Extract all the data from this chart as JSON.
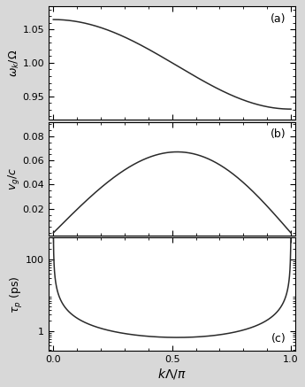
{
  "kappa": 0.067,
  "num_points": 5000,
  "panel_a": {
    "ylabel": "$\\omega_k/\\Omega$",
    "yticks": [
      0.95,
      1.0,
      1.05
    ],
    "ylim": [
      0.915,
      1.085
    ],
    "label": "(a)"
  },
  "panel_b": {
    "ylabel": "$v_g/c$",
    "yticks": [
      0.02,
      0.04,
      0.06,
      0.08
    ],
    "ylim": [
      -0.002,
      0.092
    ],
    "label": "(b)"
  },
  "panel_c": {
    "ylabel": "$\\tau_p$ (ps)",
    "ylim_log": [
      0.28,
      400
    ],
    "yticks": [
      1,
      100
    ],
    "label": "(c)"
  },
  "xlabel": "$k\\Lambda/\\pi$",
  "line_color": "#2a2a2a",
  "line_width": 1.1,
  "fig_bg": "#d8d8d8",
  "plot_bg": "#ffffff",
  "tau_scale": 0.045,
  "xlim": [
    -0.02,
    1.02
  ],
  "xticks": [
    0.0,
    0.5,
    1.0
  ],
  "xticklabels": [
    "0.0",
    "0.5",
    "1.0"
  ]
}
